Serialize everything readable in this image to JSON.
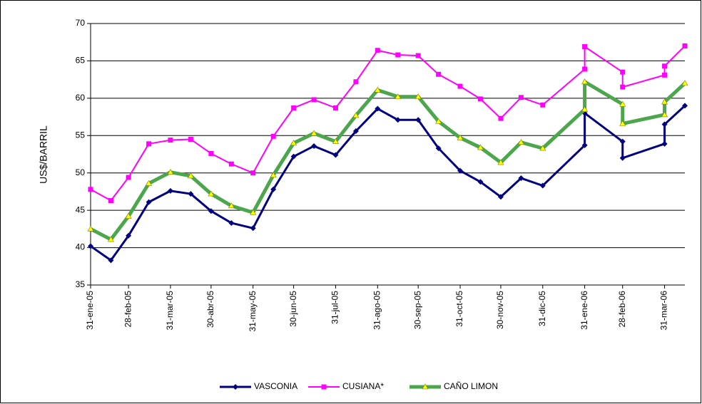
{
  "chart_data": {
    "type": "line",
    "y_label": "US$/BARRIL",
    "x": [
      "2005-01-31",
      "2005-02-15",
      "2005-02-28",
      "2005-03-15",
      "2005-03-31",
      "2005-04-15",
      "2005-04-30",
      "2005-05-15",
      "2005-05-31",
      "2005-06-15",
      "2005-06-30",
      "2005-07-15",
      "2005-07-31",
      "2005-08-15",
      "2005-08-31",
      "2005-09-15",
      "2005-09-30",
      "2005-10-15",
      "2005-10-31",
      "2005-11-15",
      "2005-11-30",
      "2005-12-15",
      "2005-12-31",
      "2006-01-31",
      "2006-01-31",
      "2006-02-28",
      "2006-02-28",
      "2006-03-31",
      "2006-03-31",
      "2006-04-15"
    ],
    "xlim": [
      "2005-01-31",
      "2006-04-15"
    ],
    "xticks": [
      {
        "value": "2005-01-31",
        "label": "31-ene-05"
      },
      {
        "value": "2005-02-28",
        "label": "28-feb-05"
      },
      {
        "value": "2005-03-31",
        "label": "31-mar-05"
      },
      {
        "value": "2005-04-30",
        "label": "30-abr-05"
      },
      {
        "value": "2005-05-31",
        "label": "31-may-05"
      },
      {
        "value": "2005-06-30",
        "label": "30-jun-05"
      },
      {
        "value": "2005-07-31",
        "label": "31-jul-05"
      },
      {
        "value": "2005-08-31",
        "label": "31-ago-05"
      },
      {
        "value": "2005-09-30",
        "label": "30-sep-05"
      },
      {
        "value": "2005-10-31",
        "label": "31-oct-05"
      },
      {
        "value": "2005-11-30",
        "label": "30-nov-05"
      },
      {
        "value": "2005-12-31",
        "label": "31-dic-05"
      },
      {
        "value": "2006-01-31",
        "label": "31-ene-06"
      },
      {
        "value": "2006-02-28",
        "label": "28-feb-06"
      },
      {
        "value": "2006-03-31",
        "label": "31-mar-06"
      }
    ],
    "ylim": [
      35,
      70
    ],
    "yticks": [
      35,
      40,
      45,
      50,
      55,
      60,
      65,
      70
    ],
    "grid": true,
    "legend": "bottom",
    "series": [
      {
        "name": "VASCONIA",
        "color": "#000080",
        "marker": "diamond",
        "values": [
          40.2,
          38.3,
          41.6,
          46.1,
          47.6,
          47.2,
          44.9,
          43.3,
          42.6,
          47.8,
          52.2,
          53.6,
          52.4,
          55.6,
          58.6,
          57.1,
          57.1,
          53.3,
          50.3,
          48.8,
          46.8,
          49.3,
          48.3,
          53.7,
          58.0,
          54.2,
          52.0,
          53.9,
          56.5,
          59.0
        ]
      },
      {
        "name": "CUSIANA*",
        "color": "#ff00ff",
        "marker": "square",
        "values": [
          47.8,
          46.3,
          49.4,
          53.9,
          54.4,
          54.5,
          52.6,
          51.2,
          50.0,
          54.9,
          58.7,
          59.8,
          58.7,
          62.2,
          66.4,
          65.8,
          65.7,
          63.2,
          61.6,
          59.9,
          57.3,
          60.1,
          59.1,
          63.9,
          66.9,
          63.5,
          61.5,
          63.1,
          64.3,
          67.0
        ]
      },
      {
        "name": "CAÑO LIMON",
        "color": "#4ca64c",
        "marker": "triangle",
        "values": [
          42.5,
          41.1,
          44.2,
          48.6,
          50.1,
          49.6,
          47.2,
          45.6,
          44.7,
          49.7,
          54.0,
          55.3,
          54.2,
          57.7,
          61.1,
          60.2,
          60.2,
          56.9,
          54.7,
          53.4,
          51.4,
          54.1,
          53.3,
          58.5,
          62.2,
          59.2,
          56.6,
          57.8,
          59.5,
          62.0
        ]
      }
    ]
  }
}
